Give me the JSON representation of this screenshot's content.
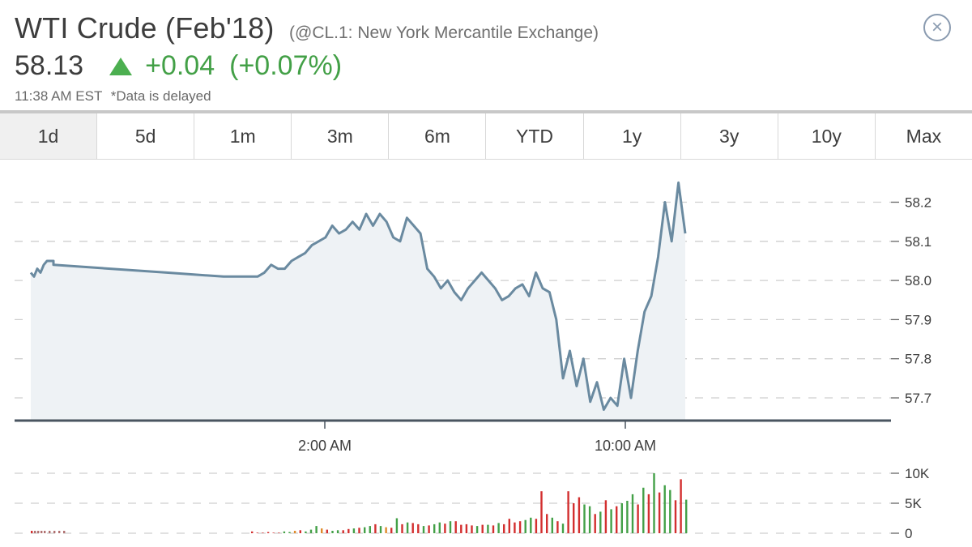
{
  "header": {
    "title": "WTI Crude (Feb'18)",
    "subtitle": "(@CL.1: New York Mercantile Exchange)",
    "price": "58.13",
    "change": "+0.04",
    "change_pct": "(+0.07%)",
    "time": "11:38 AM EST",
    "delay_note": "*Data is delayed",
    "close_icon": "close-circle-icon",
    "up_color": "#43a047"
  },
  "tabs": [
    {
      "label": "1d",
      "active": true
    },
    {
      "label": "5d"
    },
    {
      "label": "1m"
    },
    {
      "label": "3m"
    },
    {
      "label": "6m"
    },
    {
      "label": "YTD"
    },
    {
      "label": "1y"
    },
    {
      "label": "3y"
    },
    {
      "label": "10y"
    },
    {
      "label": "Max"
    }
  ],
  "chart_data": [
    {
      "type": "area",
      "title": "",
      "ylabel": "",
      "xlabel": "",
      "ylim": [
        57.64,
        58.27
      ],
      "y_ticks": [
        "58.2",
        "58.1",
        "58.0",
        "57.9",
        "57.8",
        "57.7"
      ],
      "y_tick_values": [
        58.2,
        58.1,
        58.0,
        57.9,
        57.8,
        57.7
      ],
      "x_ticks": [
        "2:00 AM",
        "10:00 AM"
      ],
      "grid": "dashed horizontal",
      "line_color": "#6a8aa0",
      "fill_color": "#eef2f5",
      "series": [
        {
          "values": [
            58.02,
            58.01,
            58.03,
            58.02,
            58.04,
            58.05,
            58.05,
            58.05,
            58.04,
            58.03,
            58.02,
            58.01,
            58.01,
            58.02,
            58.04,
            58.03,
            58.03,
            58.05,
            58.06,
            58.07,
            58.09,
            58.1,
            58.11,
            58.14,
            58.12,
            58.13,
            58.15,
            58.13,
            58.17,
            58.14,
            58.17,
            58.15,
            58.11,
            58.1,
            58.16,
            58.14,
            58.12,
            58.03,
            58.01,
            57.98,
            58.0,
            57.97,
            57.95,
            57.98,
            58.0,
            58.02,
            58.0,
            57.98,
            57.95,
            57.96,
            57.98,
            57.99,
            57.96,
            58.02,
            57.98,
            57.97,
            57.9,
            57.75,
            57.82,
            57.73,
            57.8,
            57.69,
            57.74,
            57.67,
            57.7,
            57.68,
            57.8,
            57.7,
            57.82,
            57.92,
            57.96,
            58.06,
            58.2,
            58.1,
            58.25,
            58.12
          ]
        }
      ]
    },
    {
      "type": "bar",
      "title": "",
      "ylabel": "",
      "xlabel": "",
      "ylim": [
        0,
        10000
      ],
      "y_ticks": [
        "10K",
        "5K",
        "0"
      ],
      "y_tick_values": [
        10000,
        5000,
        0
      ],
      "up_color": "#43a047",
      "down_color": "#d32f2f",
      "neutral_color": "#e08a2a",
      "values": [
        300,
        100,
        100,
        200,
        100,
        100,
        300,
        200,
        400,
        500,
        300,
        600,
        1200,
        800,
        600,
        400,
        500,
        500,
        700,
        800,
        900,
        1000,
        1200,
        1500,
        1200,
        1000,
        900,
        2500,
        1500,
        1800,
        1700,
        1500,
        1200,
        1300,
        1500,
        1800,
        1600,
        2000,
        2000,
        1400,
        1500,
        1300,
        1200,
        1400,
        1400,
        1300,
        1700,
        1500,
        2400,
        1800,
        2000,
        2200,
        2600,
        2400,
        7000,
        3200,
        2600,
        2000,
        1600,
        7000,
        5000,
        6000,
        4800,
        4500,
        3200,
        3600,
        5500,
        4000,
        4500,
        5000,
        5400,
        6500,
        4800,
        7600,
        6500,
        10000,
        6800,
        8000,
        7200,
        5500,
        9000,
        5600
      ],
      "colors": [
        "r",
        "r",
        "r",
        "r",
        "r",
        "r",
        "g",
        "g",
        "o",
        "r",
        "g",
        "g",
        "g",
        "o",
        "r",
        "g",
        "g",
        "r",
        "r",
        "g",
        "r",
        "g",
        "g",
        "r",
        "g",
        "o",
        "r",
        "g",
        "r",
        "g",
        "r",
        "r",
        "g",
        "r",
        "g",
        "g",
        "r",
        "g",
        "r",
        "r",
        "r",
        "r",
        "g",
        "r",
        "g",
        "r",
        "g",
        "r",
        "r",
        "r",
        "r",
        "g",
        "g",
        "r",
        "r",
        "r",
        "g",
        "r",
        "g",
        "r",
        "r",
        "r",
        "g",
        "g",
        "r",
        "g",
        "r",
        "g",
        "r",
        "g",
        "g",
        "g",
        "r",
        "g",
        "r",
        "g",
        "r",
        "g",
        "g",
        "r",
        "r",
        "g"
      ]
    }
  ]
}
